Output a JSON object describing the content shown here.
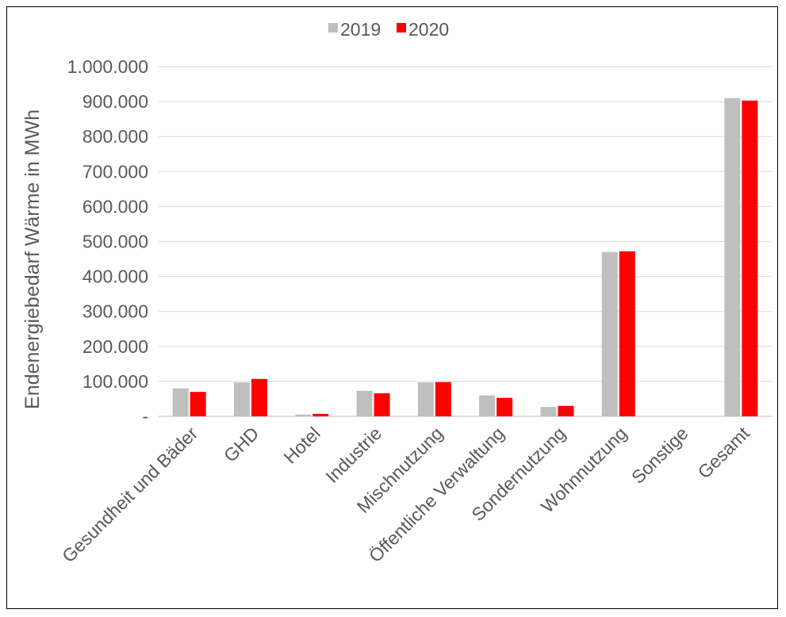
{
  "chart_data": {
    "type": "bar",
    "title": "",
    "xlabel": "",
    "ylabel": "Endenergiebedarf Wärme in MWh",
    "categories": [
      "Gesundheit und Bäder",
      "GHD",
      "Hotel",
      "Industrie",
      "Mischnutzung",
      "Öffentliche Verwaltung",
      "Sondernutzung",
      "Wohnnutzung",
      "Sonstige",
      "Gesamt"
    ],
    "series": [
      {
        "name": "2019",
        "color": "#bfbfbf",
        "values": [
          80000,
          97000,
          5000,
          73000,
          97000,
          60000,
          27000,
          470000,
          0,
          910000
        ]
      },
      {
        "name": "2020",
        "color": "#ff0000",
        "values": [
          70000,
          107000,
          7000,
          66000,
          98000,
          53000,
          30000,
          472000,
          0,
          903000
        ]
      }
    ],
    "ylim": [
      0,
      1000000
    ],
    "yticks": [
      0,
      100000,
      200000,
      300000,
      400000,
      500000,
      600000,
      700000,
      800000,
      900000,
      1000000
    ],
    "ytick_labels": [
      "-",
      "100.000",
      "200.000",
      "300.000",
      "400.000",
      "500.000",
      "600.000",
      "700.000",
      "800.000",
      "900.000",
      "1.000.000"
    ],
    "grid": true,
    "legend": "top-center"
  }
}
